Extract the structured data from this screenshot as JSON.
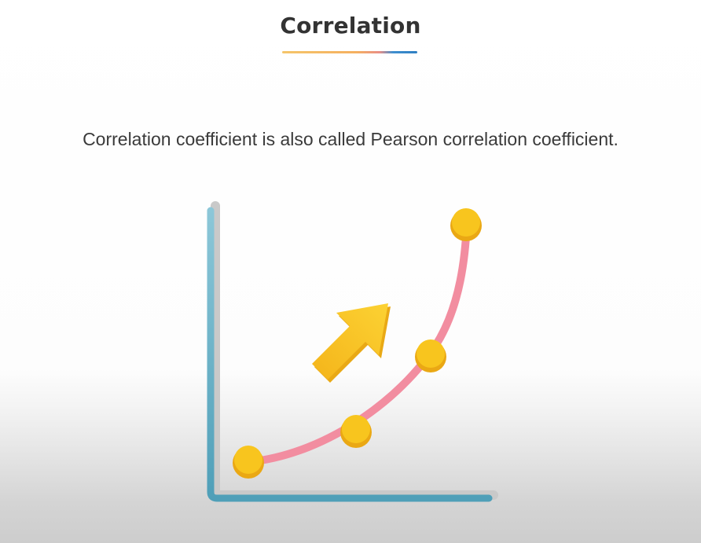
{
  "slide": {
    "title": "Correlation",
    "subtitle": "Correlation coefficient is also called Pearson correlation coefficient."
  },
  "illustration": {
    "axis_color": "#5aa7c2",
    "axis_shadow_color": "#c7c7c7",
    "curve_color": "#f08a9d",
    "point_color": "#f7c21d",
    "arrow_color": "#f9c51f"
  }
}
